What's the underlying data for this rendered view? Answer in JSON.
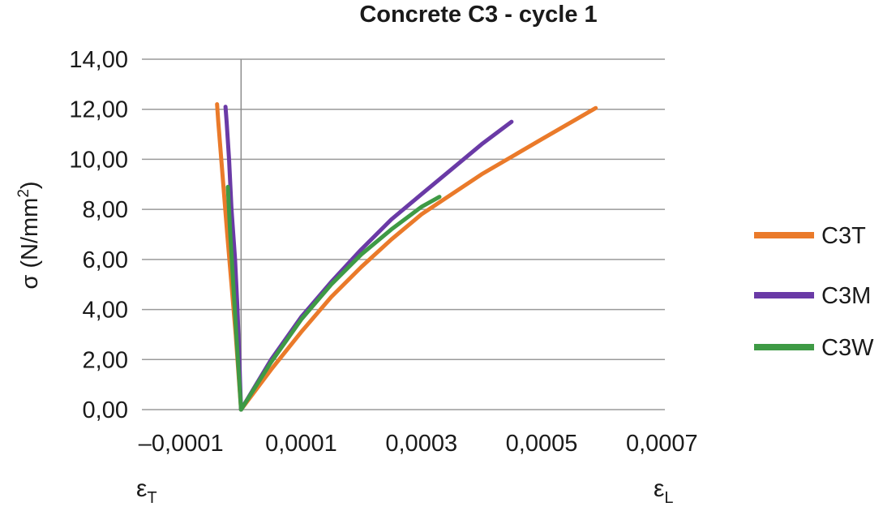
{
  "chart_data": {
    "type": "line",
    "title": "Concrete C3 - cycle 1",
    "ylabel": "σ (N/mm²)",
    "ylabel_parts": {
      "main": "σ (N/mm",
      "sup": "2",
      "close": ")"
    },
    "strain_labels": {
      "transverse": {
        "main": "ε",
        "sub": "T"
      },
      "longitudinal": {
        "main": "ε",
        "sub": "L"
      }
    },
    "x_ticks": [
      "–0,0001",
      "0,0001",
      "0,0003",
      "0,0005",
      "0,0007"
    ],
    "x_tick_values": [
      -0.0001,
      0.0001,
      0.0003,
      0.0005,
      0.0007
    ],
    "y_ticks": [
      "0,00",
      "2,00",
      "4,00",
      "6,00",
      "8,00",
      "10,00",
      "12,00",
      "14,00"
    ],
    "y_tick_values": [
      0,
      2,
      4,
      6,
      8,
      10,
      12,
      14
    ],
    "xlim": [
      -0.000165,
      0.000705
    ],
    "ylim": [
      0,
      14
    ],
    "grid": "horizontal",
    "legend_position": "right",
    "series": [
      {
        "name": "C3T",
        "color": "#ea7a2a",
        "transverse": [
          [
            0,
            0
          ],
          [
            -3e-06,
            1
          ],
          [
            -9e-06,
            3
          ],
          [
            -1.6e-05,
            5
          ],
          [
            -2.3e-05,
            7
          ],
          [
            -2.8e-05,
            8.5
          ],
          [
            -3.3e-05,
            10
          ],
          [
            -3.8e-05,
            11.5
          ],
          [
            -4e-05,
            12.2
          ]
        ],
        "longitudinal": [
          [
            0,
            0
          ],
          [
            5e-05,
            1.6
          ],
          [
            0.0001,
            3.1
          ],
          [
            0.00015,
            4.5
          ],
          [
            0.0002,
            5.7
          ],
          [
            0.00025,
            6.8
          ],
          [
            0.0003,
            7.8
          ],
          [
            0.0004,
            9.4
          ],
          [
            0.0005,
            10.8
          ],
          [
            0.00059,
            12.05
          ]
        ]
      },
      {
        "name": "C3M",
        "color": "#6a3aa6",
        "transverse": [
          [
            0,
            0
          ],
          [
            -3e-06,
            2
          ],
          [
            -6e-06,
            4
          ],
          [
            -1e-05,
            6
          ],
          [
            -1.6e-05,
            8
          ],
          [
            -2e-05,
            10
          ],
          [
            -2.4e-05,
            11.5
          ],
          [
            -2.6e-05,
            12.1
          ]
        ],
        "longitudinal": [
          [
            0,
            0
          ],
          [
            5e-05,
            2.0
          ],
          [
            0.0001,
            3.7
          ],
          [
            0.00015,
            5.1
          ],
          [
            0.0002,
            6.4
          ],
          [
            0.00025,
            7.6
          ],
          [
            0.0003,
            8.6
          ],
          [
            0.00035,
            9.6
          ],
          [
            0.0004,
            10.6
          ],
          [
            0.00045,
            11.5
          ]
        ]
      },
      {
        "name": "C3W",
        "color": "#3e9a45",
        "transverse": [
          [
            0,
            0
          ],
          [
            -4e-06,
            1.5
          ],
          [
            -8e-06,
            3
          ],
          [
            -1.3e-05,
            5
          ],
          [
            -1.8e-05,
            7
          ],
          [
            -2.2e-05,
            8.9
          ]
        ],
        "longitudinal": [
          [
            0,
            0
          ],
          [
            5e-05,
            1.9
          ],
          [
            0.0001,
            3.6
          ],
          [
            0.00015,
            5.0
          ],
          [
            0.0002,
            6.2
          ],
          [
            0.00025,
            7.2
          ],
          [
            0.0003,
            8.1
          ],
          [
            0.00033,
            8.5
          ]
        ]
      }
    ]
  }
}
